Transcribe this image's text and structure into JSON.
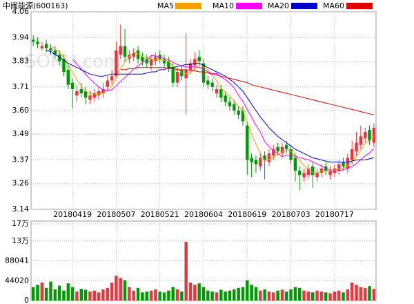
{
  "chart_data": {
    "type": "candlestick",
    "title": "中闽能源(600163)",
    "watermark": "SOHU.com",
    "categories": [
      null,
      null,
      null,
      null,
      null,
      null,
      null,
      null,
      null,
      "20180419",
      null,
      null,
      null,
      null,
      null,
      null,
      null,
      null,
      null,
      "20180507",
      null,
      null,
      null,
      null,
      null,
      null,
      null,
      null,
      null,
      "20180521",
      null,
      null,
      null,
      null,
      null,
      null,
      null,
      null,
      null,
      "20180604",
      null,
      null,
      null,
      null,
      null,
      null,
      null,
      null,
      null,
      "20180619",
      null,
      null,
      null,
      null,
      null,
      null,
      null,
      null,
      null,
      "20180703",
      null,
      null,
      null,
      null,
      null,
      null,
      null,
      null,
      null,
      "20180717",
      null,
      null,
      null,
      null,
      null,
      null,
      null,
      null,
      null
    ],
    "open": [
      3.93,
      3.92,
      3.89,
      3.91,
      3.89,
      3.88,
      3.86,
      3.84,
      3.79,
      3.73,
      3.67,
      3.7,
      3.69,
      3.65,
      3.66,
      3.67,
      3.68,
      3.71,
      3.74,
      3.76,
      3.86,
      3.9,
      3.84,
      3.85,
      3.88,
      3.85,
      3.84,
      3.81,
      3.83,
      3.86,
      3.84,
      3.83,
      3.8,
      3.73,
      3.79,
      3.75,
      3.79,
      3.81,
      3.85,
      3.82,
      3.74,
      3.73,
      3.68,
      3.7,
      3.67,
      3.64,
      3.63,
      3.6,
      3.6,
      3.53,
      3.38,
      3.37,
      3.34,
      3.39,
      3.36,
      3.39,
      3.43,
      3.4,
      3.44,
      3.42,
      3.38,
      3.32,
      3.29,
      3.3,
      3.34,
      3.29,
      3.31,
      3.34,
      3.3,
      3.31,
      3.32,
      3.36,
      3.33,
      3.37,
      3.41,
      3.44,
      3.47,
      3.51,
      3.45
    ],
    "high": [
      3.95,
      3.94,
      3.92,
      3.93,
      3.91,
      3.9,
      3.88,
      3.86,
      3.81,
      3.75,
      3.72,
      3.73,
      3.71,
      3.69,
      3.7,
      3.71,
      3.73,
      3.76,
      3.79,
      3.92,
      4.0,
      3.98,
      3.88,
      3.89,
      3.9,
      3.87,
      3.86,
      3.86,
      3.87,
      3.88,
      3.86,
      3.85,
      3.82,
      3.8,
      3.81,
      3.96,
      3.84,
      3.87,
      3.88,
      3.84,
      3.76,
      3.75,
      3.72,
      3.72,
      3.69,
      3.66,
      3.65,
      3.62,
      3.62,
      3.55,
      3.4,
      3.39,
      3.4,
      3.41,
      3.42,
      3.44,
      3.45,
      3.45,
      3.46,
      3.44,
      3.4,
      3.34,
      3.33,
      3.35,
      3.36,
      3.33,
      3.35,
      3.36,
      3.34,
      3.35,
      3.37,
      3.38,
      3.4,
      3.46,
      3.5,
      3.53,
      3.52,
      3.53,
      3.54
    ],
    "low": [
      3.9,
      3.89,
      3.88,
      3.87,
      3.86,
      3.84,
      3.81,
      3.76,
      3.7,
      3.61,
      3.64,
      3.66,
      3.63,
      3.63,
      3.64,
      3.65,
      3.66,
      3.69,
      3.72,
      3.75,
      3.84,
      3.83,
      3.82,
      3.83,
      3.82,
      3.81,
      3.8,
      3.79,
      3.81,
      3.82,
      3.8,
      3.78,
      3.71,
      3.71,
      3.74,
      3.58,
      3.77,
      3.79,
      3.81,
      3.71,
      3.7,
      3.69,
      3.66,
      3.64,
      3.62,
      3.6,
      3.58,
      3.56,
      3.53,
      3.3,
      3.29,
      3.31,
      3.32,
      3.28,
      3.34,
      3.37,
      3.39,
      3.38,
      3.4,
      3.35,
      3.27,
      3.23,
      3.27,
      3.28,
      3.24,
      3.27,
      3.29,
      3.3,
      3.28,
      3.29,
      3.3,
      3.32,
      3.31,
      3.35,
      3.39,
      3.42,
      3.45,
      3.44,
      3.43
    ],
    "close": [
      3.92,
      3.91,
      3.9,
      3.89,
      3.88,
      3.86,
      3.83,
      3.78,
      3.72,
      3.7,
      3.69,
      3.68,
      3.66,
      3.67,
      3.68,
      3.69,
      3.7,
      3.74,
      3.76,
      3.88,
      3.9,
      3.85,
      3.86,
      3.87,
      3.84,
      3.83,
      3.82,
      3.84,
      3.85,
      3.84,
      3.82,
      3.8,
      3.73,
      3.78,
      3.76,
      3.79,
      3.82,
      3.84,
      3.83,
      3.73,
      3.72,
      3.71,
      3.7,
      3.66,
      3.64,
      3.62,
      3.6,
      3.58,
      3.55,
      3.37,
      3.36,
      3.35,
      3.38,
      3.37,
      3.4,
      3.42,
      3.41,
      3.43,
      3.42,
      3.37,
      3.32,
      3.3,
      3.31,
      3.33,
      3.3,
      3.31,
      3.33,
      3.32,
      3.32,
      3.33,
      3.35,
      3.34,
      3.38,
      3.42,
      3.45,
      3.48,
      3.5,
      3.46,
      3.52
    ],
    "volume": [
      30000,
      35000,
      40000,
      28000,
      42000,
      25000,
      33000,
      22000,
      38000,
      30000,
      20000,
      26000,
      24000,
      20000,
      22000,
      18000,
      25000,
      28000,
      40000,
      55000,
      50000,
      45000,
      30000,
      22000,
      28000,
      18000,
      20000,
      22000,
      25000,
      20000,
      18000,
      22000,
      30000,
      25000,
      20000,
      130000,
      40000,
      35000,
      38000,
      30000,
      22000,
      20000,
      18000,
      24000,
      20000,
      22000,
      25000,
      28000,
      30000,
      45000,
      35000,
      30000,
      22000,
      25000,
      20000,
      18000,
      22000,
      24000,
      20000,
      25000,
      30000,
      28000,
      22000,
      20000,
      18000,
      22000,
      20000,
      18000,
      16000,
      20000,
      22000,
      18000,
      25000,
      40000,
      35000,
      30000,
      28000,
      32000,
      26000
    ],
    "up_color": "#e8383d",
    "down_color": "#009a00",
    "series": [
      {
        "name": "MA5",
        "color": "#f5a000",
        "values": [
          null,
          null,
          null,
          null,
          3.9,
          3.888,
          3.872,
          3.848,
          3.814,
          3.778,
          3.744,
          3.714,
          3.69,
          3.68,
          3.676,
          3.676,
          3.68,
          3.696,
          3.714,
          3.754,
          3.796,
          3.826,
          3.85,
          3.872,
          3.864,
          3.85,
          3.844,
          3.84,
          3.836,
          3.836,
          3.834,
          3.83,
          3.808,
          3.794,
          3.778,
          3.772,
          3.776,
          3.798,
          3.808,
          3.802,
          3.788,
          3.766,
          3.738,
          3.704,
          3.686,
          3.666,
          3.644,
          3.62,
          3.598,
          3.544,
          3.492,
          3.442,
          3.402,
          3.366,
          3.372,
          3.384,
          3.396,
          3.406,
          3.416,
          3.41,
          3.39,
          3.368,
          3.344,
          3.326,
          3.312,
          3.31,
          3.316,
          3.318,
          3.318,
          3.322,
          3.33,
          3.332,
          3.344,
          3.364,
          3.388,
          3.414,
          3.448,
          3.462,
          3.482
        ]
      },
      {
        "name": "MA10",
        "color": "#ff00ff",
        "values": [
          null,
          null,
          null,
          null,
          null,
          null,
          null,
          null,
          null,
          3.839,
          3.816,
          3.793,
          3.769,
          3.747,
          3.727,
          3.71,
          3.697,
          3.693,
          3.697,
          3.715,
          3.736,
          3.753,
          3.773,
          3.793,
          3.809,
          3.823,
          3.835,
          3.856,
          3.854,
          3.85,
          3.842,
          3.837,
          3.824,
          3.815,
          3.807,
          3.803,
          3.803,
          3.803,
          3.801,
          3.79,
          3.78,
          3.771,
          3.773,
          3.756,
          3.744,
          3.727,
          3.705,
          3.671,
          3.642,
          3.605,
          3.568,
          3.531,
          3.5,
          3.455,
          3.432,
          3.413,
          3.399,
          3.386,
          3.391,
          3.391,
          3.387,
          3.382,
          3.375,
          3.371,
          3.361,
          3.35,
          3.342,
          3.331,
          3.322,
          3.317,
          3.32,
          3.324,
          3.331,
          3.341,
          3.353,
          3.372,
          3.39,
          3.403,
          3.423
        ]
      },
      {
        "name": "MA20",
        "color": "#0000c8",
        "values": [
          null,
          null,
          null,
          3.88,
          3.875,
          3.86,
          3.85,
          3.835,
          3.82,
          3.81,
          3.8,
          3.79,
          3.78,
          3.77,
          3.765,
          3.76,
          3.76,
          3.765,
          3.77,
          3.77,
          3.77,
          3.77,
          3.77,
          3.77,
          3.77,
          3.77,
          3.775,
          3.78,
          3.78,
          3.79,
          3.79,
          3.8,
          3.8,
          3.805,
          3.81,
          3.815,
          3.815,
          3.82,
          3.82,
          3.81,
          3.8,
          3.79,
          3.78,
          3.77,
          3.76,
          3.745,
          3.73,
          3.71,
          3.69,
          3.66,
          3.63,
          3.6,
          3.57,
          3.545,
          3.52,
          3.5,
          3.48,
          3.465,
          3.45,
          3.435,
          3.42,
          3.41,
          3.4,
          3.39,
          3.38,
          3.375,
          3.37,
          3.365,
          3.36,
          3.36,
          3.36,
          3.36,
          3.36,
          3.365,
          3.37,
          3.37,
          3.37,
          3.375,
          3.38
        ]
      },
      {
        "name": "MA60",
        "color": "#e00000",
        "values": [
          null,
          null,
          null,
          null,
          null,
          null,
          null,
          null,
          null,
          null,
          null,
          null,
          null,
          null,
          null,
          null,
          null,
          null,
          null,
          null,
          3.79,
          3.79,
          3.795,
          3.795,
          3.8,
          3.8,
          3.8,
          3.8,
          3.8,
          3.8,
          3.8,
          3.795,
          3.795,
          3.79,
          3.79,
          3.79,
          3.785,
          3.785,
          3.78,
          3.78,
          3.775,
          3.77,
          3.765,
          3.76,
          3.755,
          3.75,
          3.745,
          3.74,
          3.735,
          3.73,
          3.72,
          3.715,
          3.71,
          3.705,
          3.7,
          3.695,
          3.69,
          3.685,
          3.68,
          3.675,
          3.67,
          3.665,
          3.66,
          3.655,
          3.65,
          3.645,
          3.64,
          3.635,
          3.63,
          3.625,
          3.62,
          3.615,
          3.61,
          3.605,
          3.6,
          3.595,
          3.59,
          3.585,
          3.58
        ]
      }
    ],
    "ylim": [
      3.14,
      4.06
    ],
    "yticks": [
      4.06,
      3.94,
      3.83,
      3.71,
      {
        "value": 3.6,
        "label": "3.60"
      },
      3.49,
      3.37,
      3.26,
      3.14
    ],
    "vlim": [
      0,
      176082
    ],
    "vticks": [
      {
        "value": 170000,
        "label": "17万"
      },
      {
        "value": 132061,
        "label": "13万"
      },
      88041,
      44020,
      0
    ],
    "grid": true
  }
}
